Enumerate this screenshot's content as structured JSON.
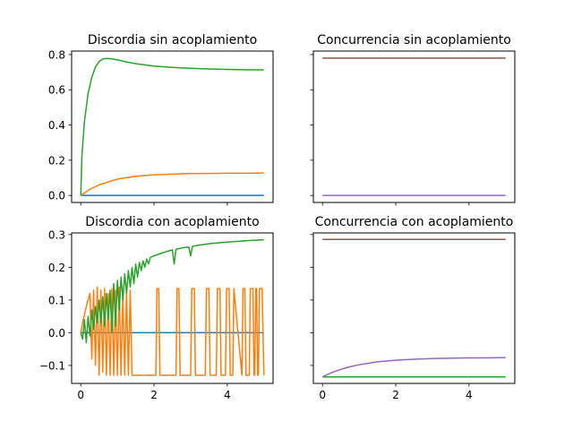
{
  "chart_data": [
    {
      "type": "line",
      "title": "Discordia sin acoplamiento",
      "xlim": [
        -0.25,
        5.25
      ],
      "ylim": [
        -0.04,
        0.82
      ],
      "xticks": [
        0,
        2,
        4
      ],
      "xtick_labels": [
        "",
        "",
        ""
      ],
      "yticks": [
        0.0,
        0.2,
        0.4,
        0.6,
        0.8
      ],
      "ytick_labels": [
        "0.0",
        "0.2",
        "0.4",
        "0.6",
        "0.8"
      ],
      "series": [
        {
          "color": "#1f77b4",
          "x": [
            0,
            5
          ],
          "y": [
            0.0,
            0.0
          ]
        },
        {
          "color": "#ff7f0e",
          "x": [
            0,
            0.25,
            0.5,
            1.0,
            1.5,
            2.0,
            2.5,
            3.0,
            3.5,
            4.0,
            4.5,
            5.0
          ],
          "y": [
            0.0,
            0.035,
            0.06,
            0.093,
            0.109,
            0.117,
            0.121,
            0.124,
            0.125,
            0.126,
            0.126,
            0.127
          ]
        },
        {
          "color": "#2ca02c",
          "x": [
            0,
            0.03,
            0.1,
            0.2,
            0.3,
            0.4,
            0.5,
            0.6,
            0.7,
            0.8,
            1.0,
            1.2,
            1.5,
            2.0,
            2.5,
            3.0,
            3.5,
            4.0,
            4.5,
            5.0
          ],
          "y": [
            0.0,
            0.22,
            0.42,
            0.58,
            0.67,
            0.73,
            0.76,
            0.775,
            0.778,
            0.777,
            0.77,
            0.76,
            0.748,
            0.735,
            0.727,
            0.722,
            0.718,
            0.716,
            0.714,
            0.713
          ]
        }
      ]
    },
    {
      "type": "line",
      "title": "Concurrencia sin acoplamiento",
      "xlim": [
        -0.25,
        5.25
      ],
      "ylim": [
        -0.04,
        0.82
      ],
      "xticks": [
        0,
        2,
        4
      ],
      "xtick_labels": [
        "",
        "",
        ""
      ],
      "yticks": [
        0.0,
        0.2,
        0.4,
        0.6,
        0.8
      ],
      "ytick_labels": [
        "",
        "",
        "",
        "",
        ""
      ],
      "series": [
        {
          "color": "#8c564b",
          "x": [
            0,
            5
          ],
          "y": [
            0.78,
            0.78
          ]
        },
        {
          "color": "#9467bd",
          "x": [
            0,
            5
          ],
          "y": [
            0.0,
            0.0
          ]
        }
      ]
    },
    {
      "type": "line",
      "title": "Discordia con acoplamiento",
      "xlim": [
        -0.25,
        5.25
      ],
      "ylim": [
        -0.155,
        0.305
      ],
      "xticks": [
        0,
        2,
        4
      ],
      "xtick_labels": [
        "0",
        "2",
        "4"
      ],
      "yticks": [
        -0.1,
        0.0,
        0.1,
        0.2,
        0.3
      ],
      "ytick_labels": [
        "−0.1",
        "0.0",
        "0.1",
        "0.2",
        "0.3"
      ],
      "series": [
        {
          "color": "#1f77b4",
          "x": [
            0,
            5
          ],
          "y": [
            0.0,
            0.0
          ]
        },
        {
          "color": "#ff7f0e",
          "x": [
            0,
            0.05,
            0.1,
            0.15,
            0.2,
            0.25,
            0.3,
            0.35,
            0.4,
            0.45,
            0.5,
            0.55,
            0.6,
            0.65,
            0.7,
            0.75,
            0.8,
            0.85,
            0.9,
            0.95,
            1.0,
            1.05,
            1.1,
            1.15,
            1.2,
            1.25,
            1.3,
            1.35,
            1.4,
            2.05,
            2.08,
            2.13,
            2.16,
            2.6,
            2.63,
            2.68,
            2.71,
            3.0,
            3.03,
            3.1,
            3.13,
            3.4,
            3.43,
            3.5,
            3.53,
            3.7,
            3.73,
            3.8,
            3.83,
            3.95,
            3.98,
            4.05,
            4.08,
            4.15,
            4.18,
            4.4,
            4.43,
            4.48,
            4.51,
            4.6,
            4.63,
            4.7,
            4.73,
            4.75,
            4.78,
            4.8,
            4.83,
            4.85,
            4.88,
            4.95,
            5.0
          ],
          "y": [
            0.0,
            0.03,
            0.055,
            0.08,
            0.1,
            0.12,
            -0.08,
            0.13,
            -0.1,
            0.14,
            -0.13,
            0.13,
            -0.12,
            0.135,
            -0.13,
            0.12,
            -0.13,
            0.135,
            -0.13,
            0.13,
            -0.13,
            0.14,
            -0.13,
            0.13,
            -0.13,
            0.13,
            -0.13,
            0.13,
            -0.13,
            -0.13,
            0.135,
            0.135,
            -0.13,
            -0.13,
            0.135,
            0.135,
            -0.13,
            -0.13,
            0.135,
            0.135,
            -0.13,
            -0.13,
            0.135,
            0.135,
            -0.13,
            -0.13,
            0.135,
            0.135,
            -0.13,
            -0.13,
            0.135,
            0.135,
            -0.13,
            -0.13,
            0.135,
            -0.13,
            0.135,
            0.135,
            -0.13,
            -0.13,
            0.135,
            0.135,
            -0.13,
            -0.13,
            0.135,
            0.135,
            -0.13,
            -0.13,
            0.135,
            0.135,
            -0.13
          ]
        },
        {
          "color": "#2ca02c",
          "x": [
            0,
            0.05,
            0.1,
            0.15,
            0.2,
            0.25,
            0.3,
            0.35,
            0.4,
            0.45,
            0.5,
            0.55,
            0.6,
            0.65,
            0.7,
            0.75,
            0.8,
            0.85,
            0.9,
            0.95,
            1.0,
            1.05,
            1.1,
            1.15,
            1.2,
            1.25,
            1.3,
            1.35,
            1.4,
            1.45,
            1.5,
            1.55,
            1.6,
            1.65,
            1.7,
            1.75,
            1.8,
            1.85,
            1.9,
            2.0,
            2.2,
            2.4,
            2.5,
            2.55,
            2.6,
            2.8,
            2.95,
            3.0,
            3.05,
            3.2,
            3.5,
            4.0,
            4.5,
            5.0
          ],
          "y": [
            0.0,
            -0.02,
            0.04,
            -0.03,
            0.05,
            -0.01,
            0.07,
            0.01,
            0.08,
            0.03,
            0.1,
            0.03,
            0.11,
            0.02,
            0.12,
            0.04,
            0.13,
            0.0,
            0.15,
            0.02,
            0.16,
            0.07,
            0.17,
            0.1,
            0.18,
            0.12,
            0.19,
            0.14,
            0.2,
            0.15,
            0.21,
            0.17,
            0.215,
            0.19,
            0.22,
            0.2,
            0.225,
            0.21,
            0.23,
            0.235,
            0.243,
            0.25,
            0.253,
            0.21,
            0.255,
            0.26,
            0.262,
            0.235,
            0.264,
            0.267,
            0.272,
            0.277,
            0.281,
            0.284
          ]
        }
      ]
    },
    {
      "type": "line",
      "title": "Concurrencia con acoplamiento",
      "xlim": [
        -0.25,
        5.25
      ],
      "ylim": [
        -0.155,
        0.305
      ],
      "xticks": [
        0,
        2,
        4
      ],
      "xtick_labels": [
        "0",
        "2",
        "4"
      ],
      "yticks": [
        -0.1,
        0.0,
        0.1,
        0.2,
        0.3
      ],
      "ytick_labels": [
        "",
        "",
        "",
        "",
        ""
      ],
      "series": [
        {
          "color": "#8c564b",
          "x": [
            0,
            5
          ],
          "y": [
            0.285,
            0.285
          ]
        },
        {
          "color": "#2ca02c",
          "x": [
            0,
            5
          ],
          "y": [
            -0.135,
            -0.135
          ]
        },
        {
          "color": "#9467bd",
          "x": [
            0,
            0.25,
            0.5,
            0.75,
            1.0,
            1.5,
            2.0,
            2.5,
            3.0,
            3.5,
            4.0,
            4.5,
            5.0
          ],
          "y": [
            -0.135,
            -0.122,
            -0.112,
            -0.104,
            -0.098,
            -0.089,
            -0.084,
            -0.081,
            -0.079,
            -0.078,
            -0.077,
            -0.077,
            -0.076
          ]
        }
      ]
    }
  ]
}
